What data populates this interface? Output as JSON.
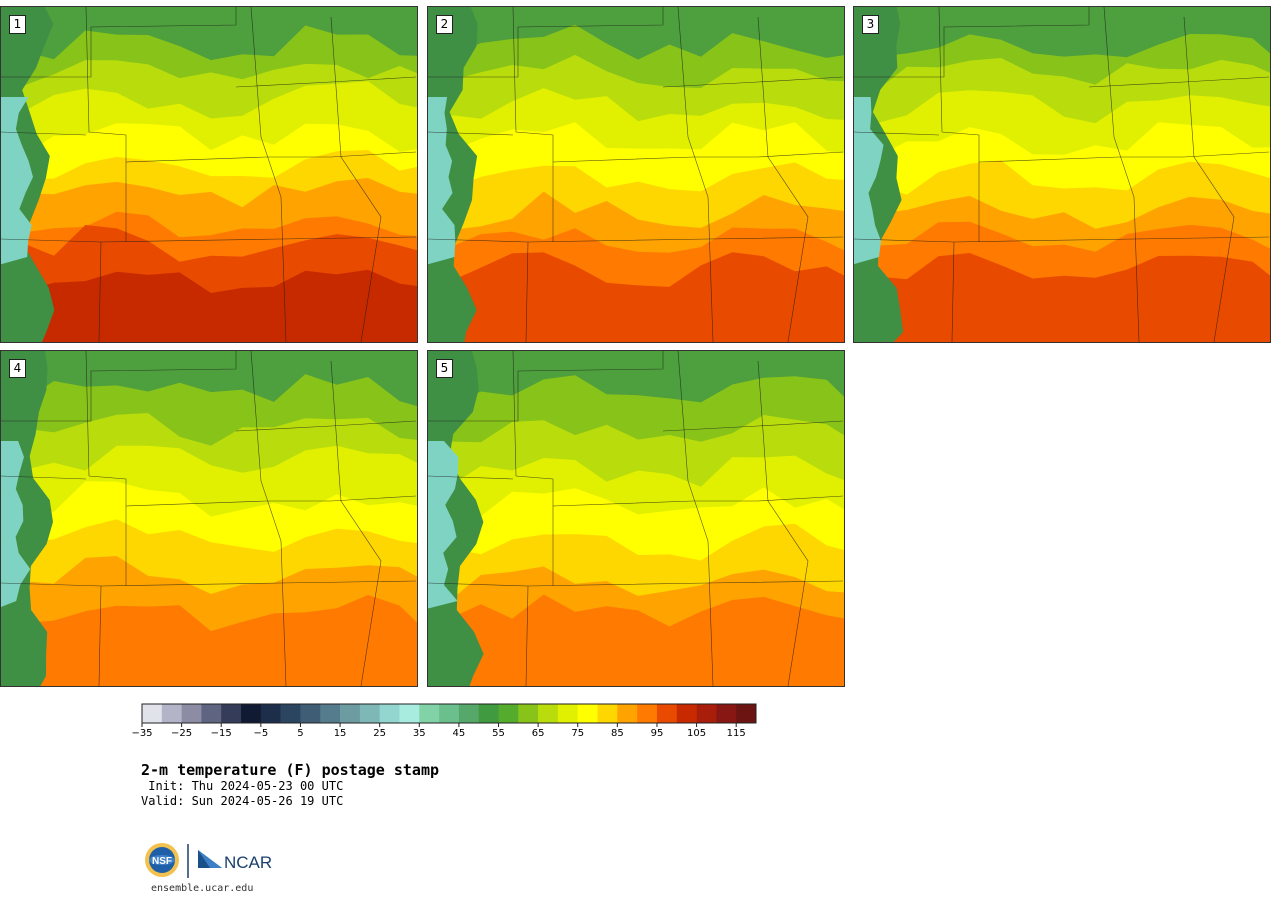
{
  "figure": {
    "title": "2-m temperature (F) postage stamp",
    "init": " Init: Thu 2024-05-23 00 UTC",
    "valid": "Valid: Sun 2024-05-26 19 UTC",
    "website": "ensemble.ucar.edu",
    "logo_text": "NCAR"
  },
  "stamps": [
    {
      "label": "1",
      "hot_level": 4
    },
    {
      "label": "2",
      "hot_level": 3
    },
    {
      "label": "3",
      "hot_level": 3
    },
    {
      "label": "4",
      "hot_level": 2
    },
    {
      "label": "5",
      "hot_level": 2
    }
  ],
  "colorbar": {
    "tick_labels": [
      "−35",
      "−25",
      "−15",
      "−5",
      "5",
      "15",
      "25",
      "35",
      "45",
      "55",
      "65",
      "75",
      "85",
      "95",
      "105",
      "115"
    ],
    "tick_values": [
      -35,
      -25,
      -15,
      -5,
      5,
      15,
      25,
      35,
      45,
      55,
      65,
      75,
      85,
      95,
      105,
      115
    ],
    "min": -35,
    "max": 120,
    "step": 5,
    "colors": [
      "#e1e3ea",
      "#b4b4c8",
      "#8c8ca4",
      "#5f6580",
      "#343c5a",
      "#101a32",
      "#1c2e4a",
      "#2b4560",
      "#3f5e76",
      "#557c8c",
      "#6c9ba2",
      "#7db7b6",
      "#93d6cf",
      "#a8ece0",
      "#82d2a8",
      "#6abf8c",
      "#55a86a",
      "#3f9a40",
      "#54ab2c",
      "#88c31a",
      "#b9dd0c",
      "#e1f000",
      "#ffff00",
      "#ffd700",
      "#ffa300",
      "#ff7a00",
      "#e84a00",
      "#c82a00",
      "#a81e0a",
      "#881612",
      "#6c1412"
    ]
  }
}
